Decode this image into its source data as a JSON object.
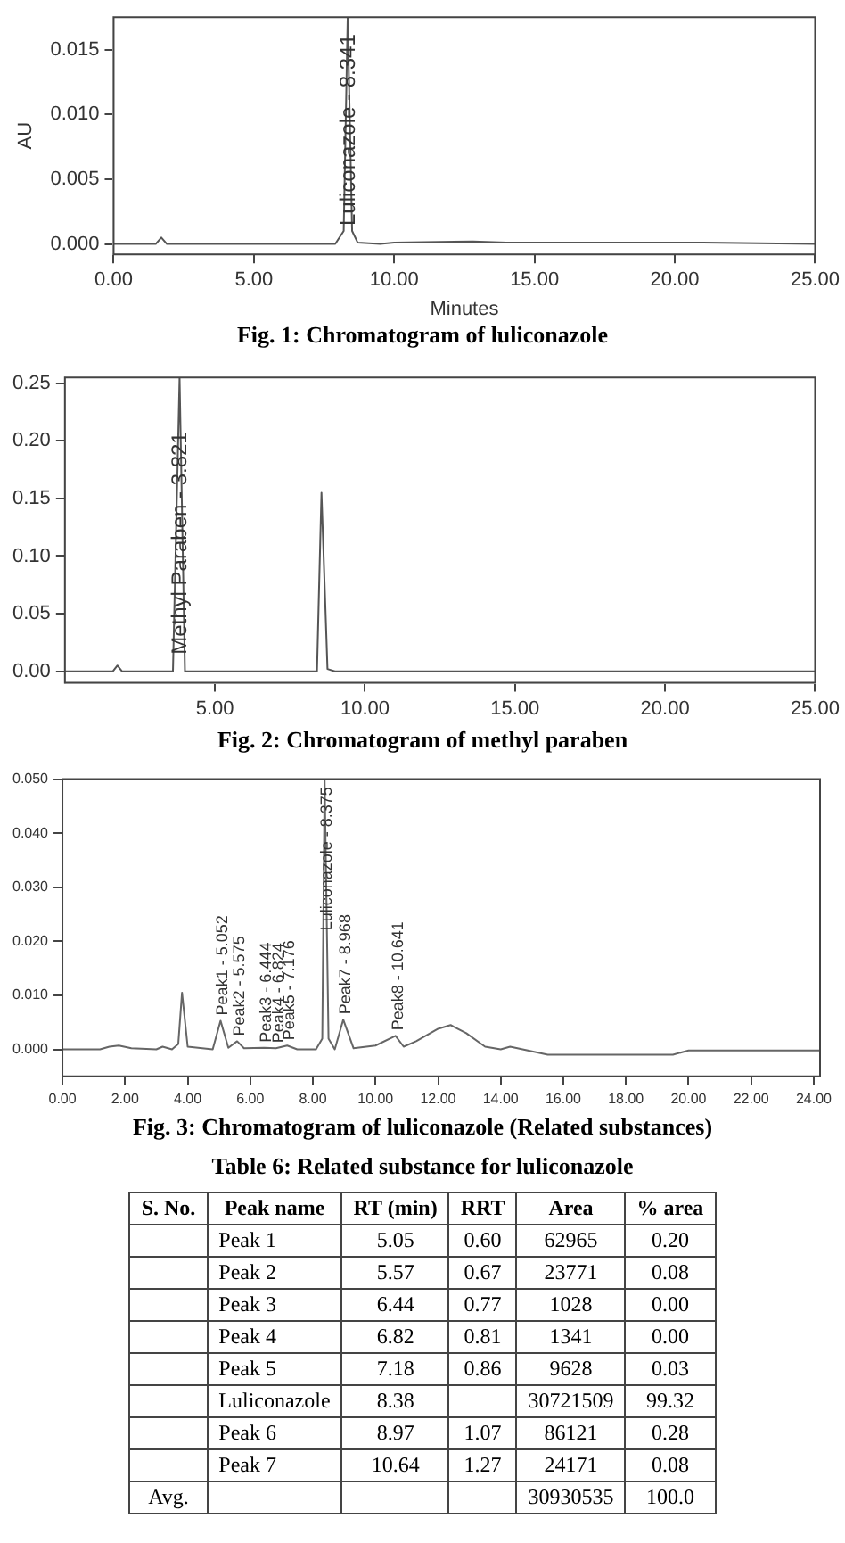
{
  "chart_data": [
    {
      "type": "line",
      "title": "Fig. 1: Chromatogram of luliconazole",
      "xlabel": "Minutes",
      "ylabel": "AU",
      "grid": false,
      "legend": false,
      "marker": "none",
      "line_style": "solid",
      "xlim": [
        0,
        25
      ],
      "xticks": [
        {
          "value": 0,
          "label": "0.00"
        },
        {
          "value": 5,
          "label": "5.00"
        },
        {
          "value": 10,
          "label": "10.00"
        },
        {
          "value": 15,
          "label": "15.00"
        },
        {
          "value": 20,
          "label": "20.00"
        },
        {
          "value": 25,
          "label": "25.00"
        }
      ],
      "ylim": [
        -0.0008,
        0.0175
      ],
      "yticks": [
        {
          "value": 0,
          "label": "0.000"
        },
        {
          "value": 0.005,
          "label": "0.005"
        },
        {
          "value": 0.01,
          "label": "0.010"
        },
        {
          "value": 0.015,
          "label": "0.015"
        }
      ],
      "series": [
        {
          "color": "#555555",
          "x": [
            0,
            1.5,
            1.7,
            1.9,
            7.9,
            8.2,
            8.341,
            8.5,
            8.7,
            9.5,
            10,
            12.8,
            14,
            18,
            21,
            25
          ],
          "values": [
            0,
            0,
            0.0005,
            0,
            0,
            0.001,
            0.0175,
            0.001,
            0.0001,
            0,
            0.0001,
            0.0002,
            0.0001,
            0.0001,
            0.0001,
            0
          ]
        }
      ],
      "annotations": [
        {
          "text": "Luliconazole - 8.341",
          "x": 8.341,
          "y": 0.001
        }
      ]
    },
    {
      "type": "line",
      "title": "Fig. 2: Chromatogram of methyl paraben",
      "grid": false,
      "legend": false,
      "marker": "none",
      "line_style": "solid",
      "xlim": [
        0,
        25
      ],
      "xticks": [
        {
          "value": 5,
          "label": "5.00"
        },
        {
          "value": 10,
          "label": "10.00"
        },
        {
          "value": 15,
          "label": "15.00"
        },
        {
          "value": 20,
          "label": "20.00"
        },
        {
          "value": 25,
          "label": "25.00"
        }
      ],
      "ylim": [
        -0.01,
        0.255
      ],
      "yticks": [
        {
          "value": 0,
          "label": "0.00"
        },
        {
          "value": 0.05,
          "label": "0.05"
        },
        {
          "value": 0.1,
          "label": "0.10"
        },
        {
          "value": 0.15,
          "label": "0.15"
        },
        {
          "value": 0.2,
          "label": "0.20"
        },
        {
          "value": 0.25,
          "label": "0.25"
        }
      ],
      "series": [
        {
          "color": "#555555",
          "x": [
            0,
            1.6,
            1.75,
            1.9,
            3.6,
            3.821,
            4.0,
            8.4,
            8.55,
            8.75,
            9,
            25
          ],
          "values": [
            0,
            0,
            0.005,
            0,
            0,
            0.255,
            0,
            0,
            0.155,
            0.002,
            0,
            0
          ]
        }
      ],
      "annotations": [
        {
          "text": "Methyl Paraben - 3.821",
          "x": 3.821,
          "y": 0.01
        }
      ]
    },
    {
      "type": "line",
      "title": "Fig. 3: Chromatogram of luliconazole (Related substances)",
      "grid": false,
      "legend": false,
      "marker": "none",
      "line_style": "solid",
      "xlim": [
        0,
        24.2
      ],
      "xticks": [
        {
          "value": 0,
          "label": "0.00"
        },
        {
          "value": 2,
          "label": "2.00"
        },
        {
          "value": 4,
          "label": "4.00"
        },
        {
          "value": 6,
          "label": "6.00"
        },
        {
          "value": 8,
          "label": "8.00"
        },
        {
          "value": 10,
          "label": "10.00"
        },
        {
          "value": 12,
          "label": "12.00"
        },
        {
          "value": 14,
          "label": "14.00"
        },
        {
          "value": 16,
          "label": "16.00"
        },
        {
          "value": 18,
          "label": "18.00"
        },
        {
          "value": 20,
          "label": "20.00"
        },
        {
          "value": 22,
          "label": "22.00"
        },
        {
          "value": 24,
          "label": "24.00"
        }
      ],
      "ylim": [
        -0.005,
        0.05
      ],
      "yticks": [
        {
          "value": 0,
          "label": "0.000"
        },
        {
          "value": 0.01,
          "label": "0.010"
        },
        {
          "value": 0.02,
          "label": "0.020"
        },
        {
          "value": 0.03,
          "label": "0.030"
        },
        {
          "value": 0.04,
          "label": "0.040"
        },
        {
          "value": 0.05,
          "label": "0.050"
        }
      ],
      "series": [
        {
          "color": "#666666",
          "x": [
            0,
            1.2,
            1.5,
            1.8,
            2.2,
            3.0,
            3.2,
            3.5,
            3.7,
            3.82,
            4.0,
            4.8,
            5.05,
            5.3,
            5.58,
            5.8,
            6.44,
            6.82,
            7.18,
            7.5,
            8.1,
            8.3,
            8.375,
            8.5,
            8.7,
            8.97,
            9.3,
            10.0,
            10.64,
            10.9,
            11.3,
            12,
            12.4,
            12.9,
            13.5,
            14,
            14.3,
            14.7,
            15.5,
            19.5,
            20,
            24.2
          ],
          "values": [
            0,
            0,
            0.0005,
            0.0007,
            0.0002,
            0,
            0.0005,
            0,
            0.001,
            0.0105,
            0.0005,
            0,
            0.0053,
            0.0003,
            0.0015,
            0.0002,
            0.0003,
            0.0002,
            0.0007,
            0,
            0,
            0.002,
            0.05,
            0.002,
            0,
            0.0055,
            0.0002,
            0.0007,
            0.0025,
            0.0005,
            0.0015,
            0.0038,
            0.0045,
            0.003,
            0.0005,
            0,
            0.0005,
            0,
            -0.001,
            -0.001,
            -0.0002,
            -0.0002
          ]
        }
      ],
      "annotations": [
        {
          "text": "Peak1 - 5.052",
          "x": 5.052,
          "y": 0.0053
        },
        {
          "text": "Peak2 - 5.575",
          "x": 5.575,
          "y": 0.0015
        },
        {
          "text": "Peak3 - 6.444",
          "x": 6.444,
          "y": 0.0003
        },
        {
          "text": "Peak4 - 6.824",
          "x": 6.824,
          "y": 0.0002
        },
        {
          "text": "Peak5 - 7.176",
          "x": 7.176,
          "y": 0.0007
        },
        {
          "text": "Luliconazole - 8.375",
          "x": 8.375,
          "y": 0.021
        },
        {
          "text": "Peak7 - 8.968",
          "x": 8.968,
          "y": 0.0055
        },
        {
          "text": "Peak8 - 10.641",
          "x": 10.641,
          "y": 0.0025
        }
      ]
    },
    {
      "type": "other",
      "title": "Table 6: Related substance for luliconazole",
      "categories": [
        "S. No.",
        "Peak name",
        "RT (min)",
        "RRT",
        "Area",
        "% area"
      ],
      "cell_labels": [
        [
          null,
          "Peak 1",
          "5.05",
          "0.60",
          "62965",
          "0.20"
        ],
        [
          null,
          "Peak 2",
          "5.57",
          "0.67",
          "23771",
          "0.08"
        ],
        [
          null,
          "Peak 3",
          "6.44",
          "0.77",
          "1028",
          "0.00"
        ],
        [
          null,
          "Peak 4",
          "6.82",
          "0.81",
          "1341",
          "0.00"
        ],
        [
          null,
          "Peak 5",
          "7.18",
          "0.86",
          "9628",
          "0.03"
        ],
        [
          null,
          "Luliconazole",
          "8.38",
          null,
          "30721509",
          "99.32"
        ],
        [
          null,
          "Peak 6",
          "8.97",
          "1.07",
          "86121",
          "0.28"
        ],
        [
          null,
          "Peak 7",
          "10.64",
          "1.27",
          "24171",
          "0.08"
        ],
        [
          "Avg.",
          null,
          null,
          null,
          "30930535",
          "100.0"
        ]
      ]
    }
  ]
}
